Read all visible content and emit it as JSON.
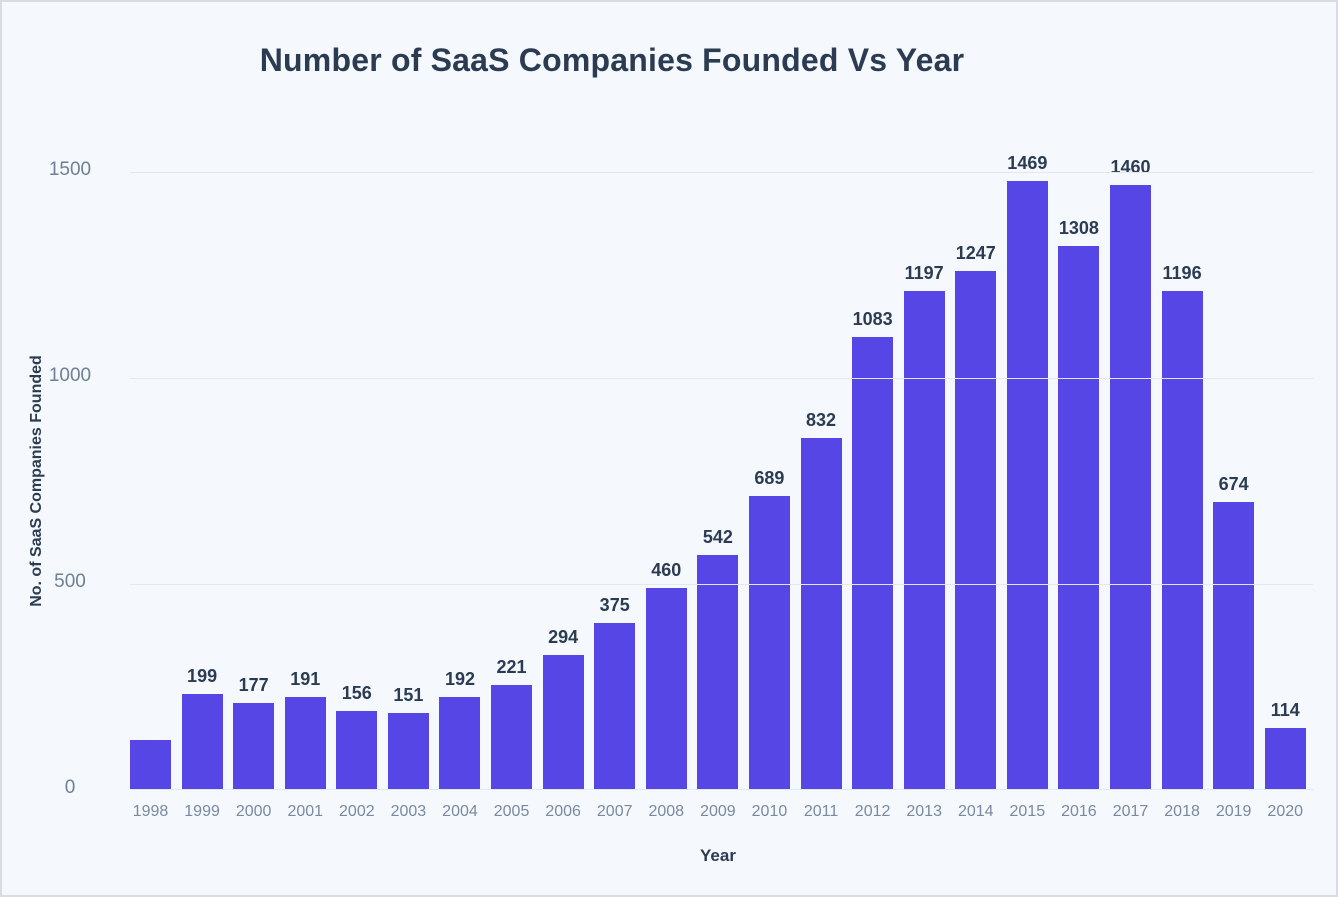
{
  "colors": {
    "background": "#f5f8fc",
    "border": "#d9dde3",
    "bar": "#5646e5",
    "navy_text": "#2b3b52",
    "ytick_text": "#6e8095",
    "xtick_text": "#7a89a0",
    "gridline": "#e3e8ef"
  },
  "chart_data": {
    "type": "bar",
    "title": "Number of SaaS Companies Founded Vs Year",
    "xlabel": "Year",
    "ylabel": "No. of SaaS Companies Founded",
    "categories": [
      "1998",
      "1999",
      "2000",
      "2001",
      "2002",
      "2003",
      "2004",
      "2005",
      "2006",
      "2007",
      "2008",
      "2009",
      "2010",
      "2011",
      "2012",
      "2013",
      "2014",
      "2015",
      "2016",
      "2017",
      "2018",
      "2019",
      "2020"
    ],
    "values": [
      85,
      199,
      177,
      191,
      156,
      151,
      192,
      221,
      294,
      375,
      460,
      542,
      689,
      832,
      1083,
      1197,
      1247,
      1469,
      1308,
      1460,
      1196,
      674,
      114
    ],
    "bar_labels": [
      "",
      "199",
      "177",
      "191",
      "156",
      "151",
      "192",
      "221",
      "294",
      "375",
      "460",
      "542",
      "689",
      "832",
      "1083",
      "1197",
      "1247",
      "1469",
      "1308",
      "1460",
      "1196",
      "674",
      "114"
    ],
    "yticks": [
      0,
      500,
      1000,
      1500
    ],
    "ylim": [
      0,
      1500
    ],
    "grid": "horizontal",
    "legend": "none",
    "bar_color": "#5646e5"
  }
}
